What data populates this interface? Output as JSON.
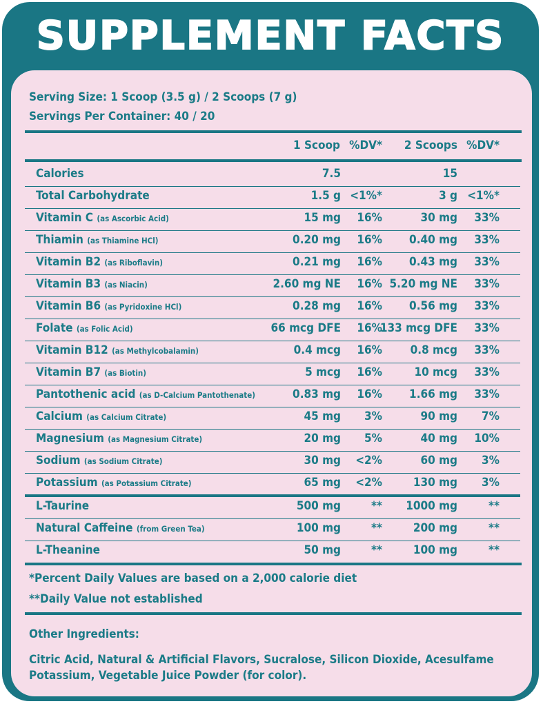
{
  "title": "SUPPLEMENT FACTS",
  "serving_size": "Serving Size: 1 Scoop (3.5 g) / 2 Scoops (7 g)",
  "servings_per_container": "Servings Per Container: 40 / 20",
  "columns": {
    "col1": "1 Scoop",
    "col2": "%DV*",
    "col3": "2 Scoops",
    "col4": "%DV*"
  },
  "rows": [
    {
      "name": "Calories",
      "sub": "",
      "v1": "7.5",
      "dv1": "",
      "v2": "15",
      "dv2": ""
    },
    {
      "name": "Total Carbohydrate",
      "sub": "",
      "v1": "1.5 g",
      "dv1": "<1%*",
      "v2": "3 g",
      "dv2": "<1%*"
    },
    {
      "name": "Vitamin C",
      "sub": "(as Ascorbic Acid)",
      "v1": "15 mg",
      "dv1": "16%",
      "v2": "30 mg",
      "dv2": "33%"
    },
    {
      "name": "Thiamin",
      "sub": "(as Thiamine HCl)",
      "v1": "0.20 mg",
      "dv1": "16%",
      "v2": "0.40 mg",
      "dv2": "33%"
    },
    {
      "name": "Vitamin B2",
      "sub": "(as Riboflavin)",
      "v1": "0.21 mg",
      "dv1": "16%",
      "v2": "0.43 mg",
      "dv2": "33%"
    },
    {
      "name": "Vitamin B3",
      "sub": "(as Niacin)",
      "v1": "2.60 mg NE",
      "dv1": "16%",
      "v2": "5.20 mg NE",
      "dv2": "33%"
    },
    {
      "name": "Vitamin B6",
      "sub": "(as Pyridoxine HCl)",
      "v1": "0.28 mg",
      "dv1": "16%",
      "v2": "0.56 mg",
      "dv2": "33%"
    },
    {
      "name": "Folate",
      "sub": "(as Folic Acid)",
      "v1": "66 mcg DFE",
      "dv1": "16%",
      "v2": "133 mcg DFE",
      "dv2": "33%"
    },
    {
      "name": "Vitamin B12",
      "sub": "(as Methylcobalamin)",
      "v1": "0.4 mcg",
      "dv1": "16%",
      "v2": "0.8 mcg",
      "dv2": "33%"
    },
    {
      "name": "Vitamin B7",
      "sub": "(as Biotin)",
      "v1": "5 mcg",
      "dv1": "16%",
      "v2": "10 mcg",
      "dv2": "33%"
    },
    {
      "name": "Pantothenic acid",
      "sub": "(as D-Calcium Pantothenate)",
      "v1": "0.83 mg",
      "dv1": "16%",
      "v2": "1.66 mg",
      "dv2": "33%"
    },
    {
      "name": "Calcium",
      "sub": "(as Calcium Citrate)",
      "v1": "45 mg",
      "dv1": "3%",
      "v2": "90 mg",
      "dv2": "7%"
    },
    {
      "name": "Magnesium",
      "sub": "(as Magnesium Citrate)",
      "v1": "20 mg",
      "dv1": "5%",
      "v2": "40 mg",
      "dv2": "10%"
    },
    {
      "name": "Sodium",
      "sub": "(as Sodium Citrate)",
      "v1": "30 mg",
      "dv1": "<2%",
      "v2": "60 mg",
      "dv2": "3%"
    },
    {
      "name": "Potassium",
      "sub": "(as Potassium Citrate)",
      "v1": "65 mg",
      "dv1": "<2%",
      "v2": "130 mg",
      "dv2": "3%"
    },
    {
      "name": "L-Taurine",
      "sub": "",
      "v1": "500 mg",
      "dv1": "**",
      "v2": "1000 mg",
      "dv2": "**"
    },
    {
      "name": "Natural Caffeine",
      "sub": "(from Green Tea)",
      "v1": "100 mg",
      "dv1": "**",
      "v2": "200 mg",
      "dv2": "**"
    },
    {
      "name": "L-Theanine",
      "sub": "",
      "v1": "50 mg",
      "dv1": "**",
      "v2": "100 mg",
      "dv2": "**"
    }
  ],
  "footnote1": "*Percent Daily Values are based on a 2,000 calorie diet",
  "footnote2": "**Daily Value not established",
  "other_ingredients_label": "Other Ingredients:",
  "other_ingredients_line1": "Citric Acid, Natural & Artificial Flavors, Sucralose, Silicon Dioxide, Acesulfame",
  "other_ingredients_line2": "Potassium, Vegetable Juice Powder (for color).",
  "colors": {
    "teal": "#1a7684",
    "panel_pink": "#f6dde9",
    "text": "#1b7b87"
  }
}
